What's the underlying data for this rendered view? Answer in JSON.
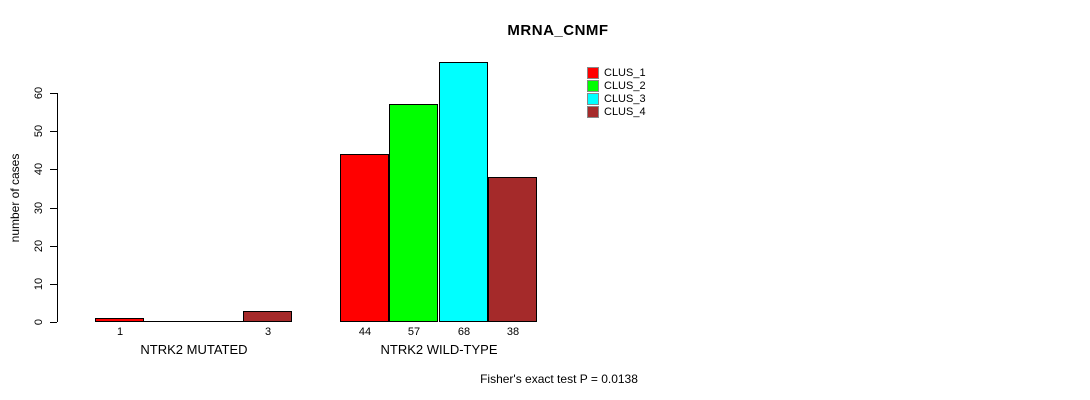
{
  "title": "MRNA_CNMF",
  "footer": "Fisher's exact test P = 0.0138",
  "colors": {
    "clus_1": "#ff0000",
    "clus_2": "#00ff00",
    "clus_3": "#00ffff",
    "clus_4": "#a52a2a",
    "bar_border": "#000000",
    "background": "#ffffff"
  },
  "chart_data": {
    "type": "bar",
    "title": "MRNA_CNMF",
    "xlabel": "",
    "ylabel": "number of cases",
    "ylim": [
      0,
      60
    ],
    "yticks": [
      0,
      10,
      20,
      30,
      40,
      50,
      60
    ],
    "grid": false,
    "legend_position": "top-right",
    "categories": [
      "NTRK2 MUTATED",
      "NTRK2 WILD-TYPE"
    ],
    "series": [
      {
        "name": "CLUS_1",
        "color": "#ff0000",
        "values": [
          1,
          44
        ]
      },
      {
        "name": "CLUS_2",
        "color": "#00ff00",
        "values": [
          0,
          57
        ]
      },
      {
        "name": "CLUS_3",
        "color": "#00ffff",
        "values": [
          0,
          68
        ]
      },
      {
        "name": "CLUS_4",
        "color": "#a52a2a",
        "values": [
          3,
          38
        ]
      }
    ],
    "bar_labels": [
      [
        "1",
        "",
        "",
        "3"
      ],
      [
        "44",
        "57",
        "68",
        "38"
      ]
    ],
    "annotation": "Fisher's exact test P = 0.0138"
  }
}
